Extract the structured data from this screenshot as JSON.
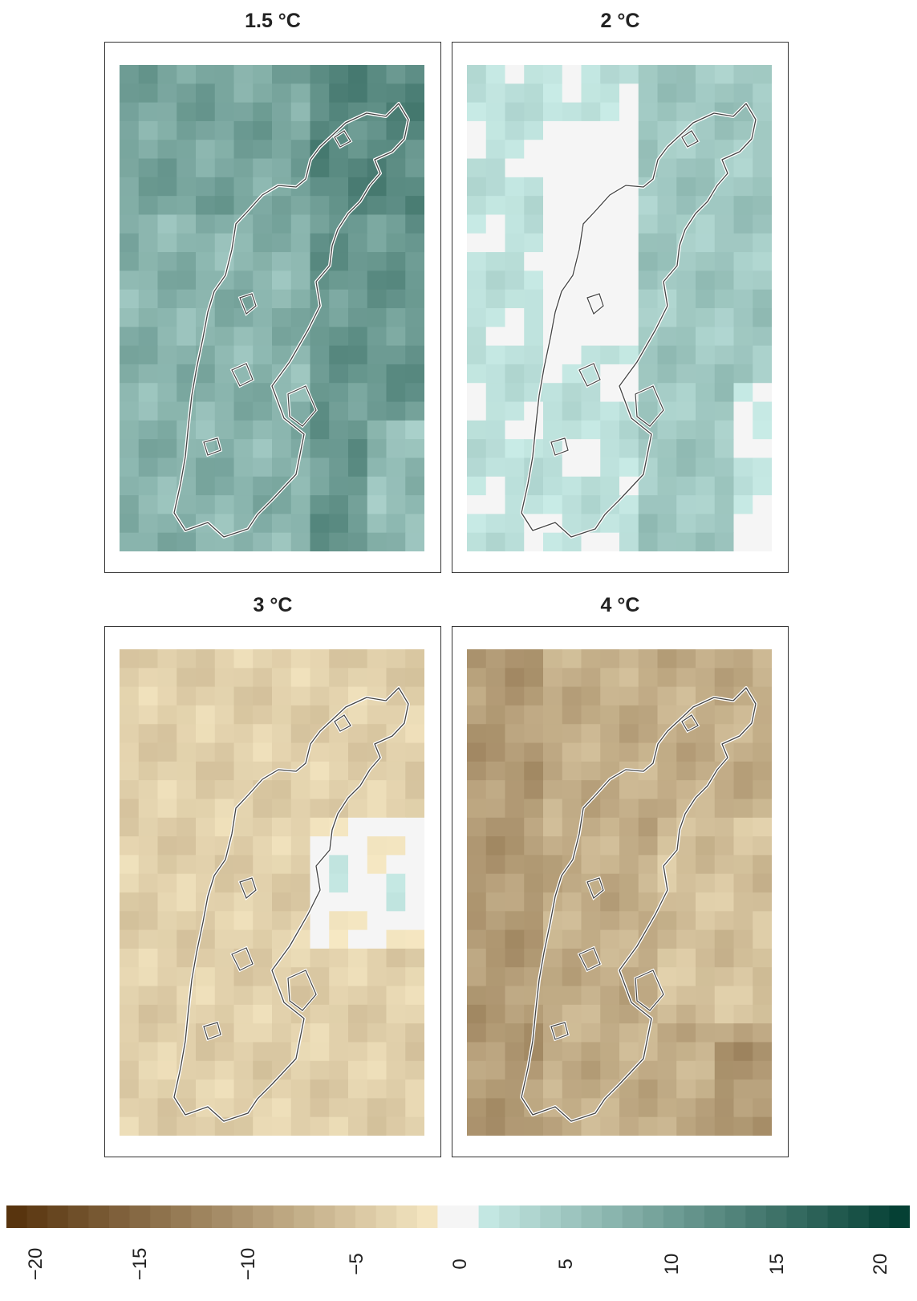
{
  "panels": [
    {
      "title": "1.5 °C",
      "warming": 1.5
    },
    {
      "title": "2 °C",
      "warming": 2
    },
    {
      "title": "3 °C",
      "warming": 3
    },
    {
      "title": "4 °C",
      "warming": 4
    }
  ],
  "colorbar": {
    "min": -20,
    "max": 20,
    "ticks": [
      "−20",
      "−15",
      "−10",
      "−5",
      "0",
      "5",
      "10",
      "15",
      "20"
    ],
    "negative_color_dark": "#54300a",
    "negative_color_light": "#f6e8c3",
    "neutral_color": "#f5f5f5",
    "positive_color_light": "#c7eae5",
    "positive_color_dark": "#003c30"
  }
}
